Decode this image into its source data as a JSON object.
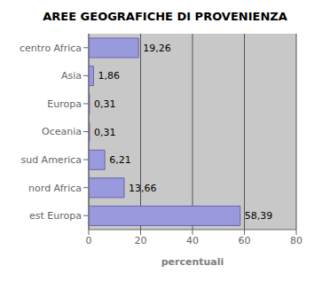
{
  "chart_data": {
    "type": "bar",
    "orientation": "horizontal",
    "title": "AREE GEOGRAFICHE DI PROVENIENZA",
    "categories": [
      "centro Africa",
      "Asia",
      "Europa",
      "Oceania",
      "sud America",
      "nord Africa",
      "est Europa"
    ],
    "values": [
      19.26,
      1.86,
      0.31,
      0.31,
      6.21,
      13.66,
      58.39
    ],
    "value_labels": [
      "19,26",
      "1,86",
      "0,31",
      "0,31",
      "6,21",
      "13,66",
      "58,39"
    ],
    "color": "#9999dd",
    "xlabel": "percentuali",
    "xlim": [
      0,
      80
    ],
    "xticks": [
      0,
      20,
      40,
      60,
      80
    ],
    "grid": true,
    "data_labels": true
  }
}
